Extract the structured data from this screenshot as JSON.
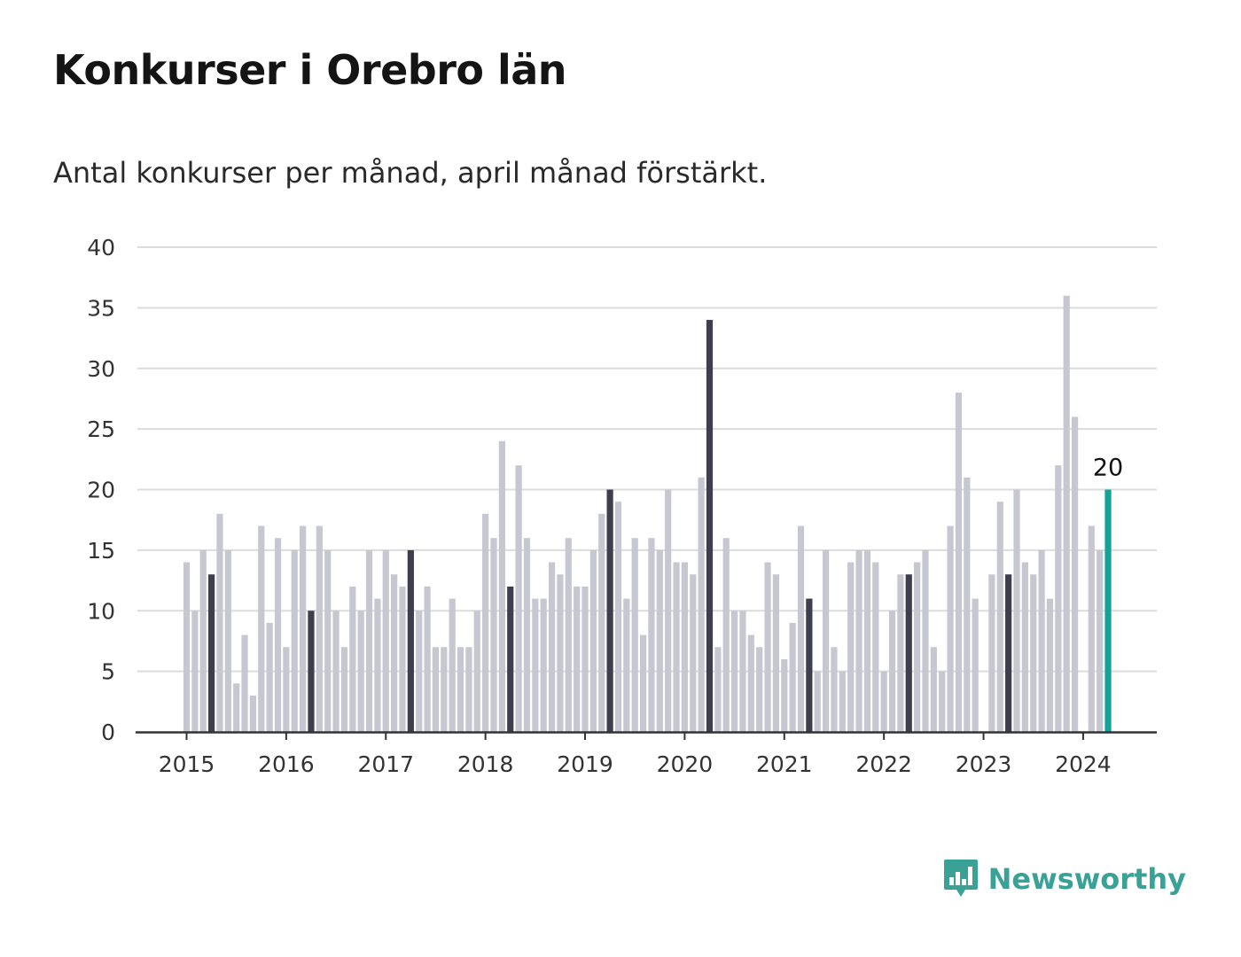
{
  "title": "Konkurser i Orebro län",
  "subtitle": "Antal konkurser per månad, april månad förstärkt.",
  "brand": {
    "name": "Newsworthy",
    "icon": "newsworthy-logo-icon",
    "color": "#3aa197"
  },
  "colors": {
    "bar": "#c7c7d2",
    "highlight": "#3e3e4e",
    "latest": "#12a39a",
    "grid": "#dcdcdc",
    "axis": "#333333",
    "text": "#333333"
  },
  "chart_data": {
    "type": "bar",
    "title": "",
    "xlabel": "",
    "ylabel": "",
    "ylim": [
      0,
      40
    ],
    "yticks": [
      "0",
      "5",
      "10",
      "15",
      "20",
      "25",
      "30",
      "35",
      "40"
    ],
    "years": [
      "2015",
      "2016",
      "2017",
      "2018",
      "2019",
      "2020",
      "2021",
      "2022",
      "2023",
      "2024"
    ],
    "highlight_month": "april",
    "grid": true,
    "legend": "none",
    "series": [
      {
        "values": [
          14,
          10,
          15,
          13,
          18,
          15,
          4,
          8,
          3,
          17,
          9,
          16,
          7,
          15,
          17,
          10,
          17,
          15,
          10,
          7,
          12,
          10,
          15,
          11,
          15,
          13,
          12,
          15,
          10,
          12,
          7,
          7,
          11,
          7,
          7,
          10,
          18,
          16,
          24,
          12,
          22,
          16,
          11,
          11,
          14,
          13,
          16,
          12,
          12,
          15,
          18,
          20,
          19,
          11,
          16,
          8,
          16,
          15,
          20,
          14,
          14,
          13,
          21,
          34,
          7,
          16,
          10,
          10,
          8,
          7,
          14,
          13,
          6,
          9,
          17,
          11,
          5,
          15,
          7,
          5,
          14,
          15,
          15,
          14,
          5,
          10,
          13,
          13,
          14,
          15,
          7,
          5,
          17,
          28,
          21,
          11,
          0,
          13,
          19,
          13,
          20,
          14,
          13,
          15,
          11,
          22,
          36,
          26,
          0,
          17,
          15,
          20
        ]
      }
    ],
    "annotation": {
      "label": "20"
    }
  }
}
